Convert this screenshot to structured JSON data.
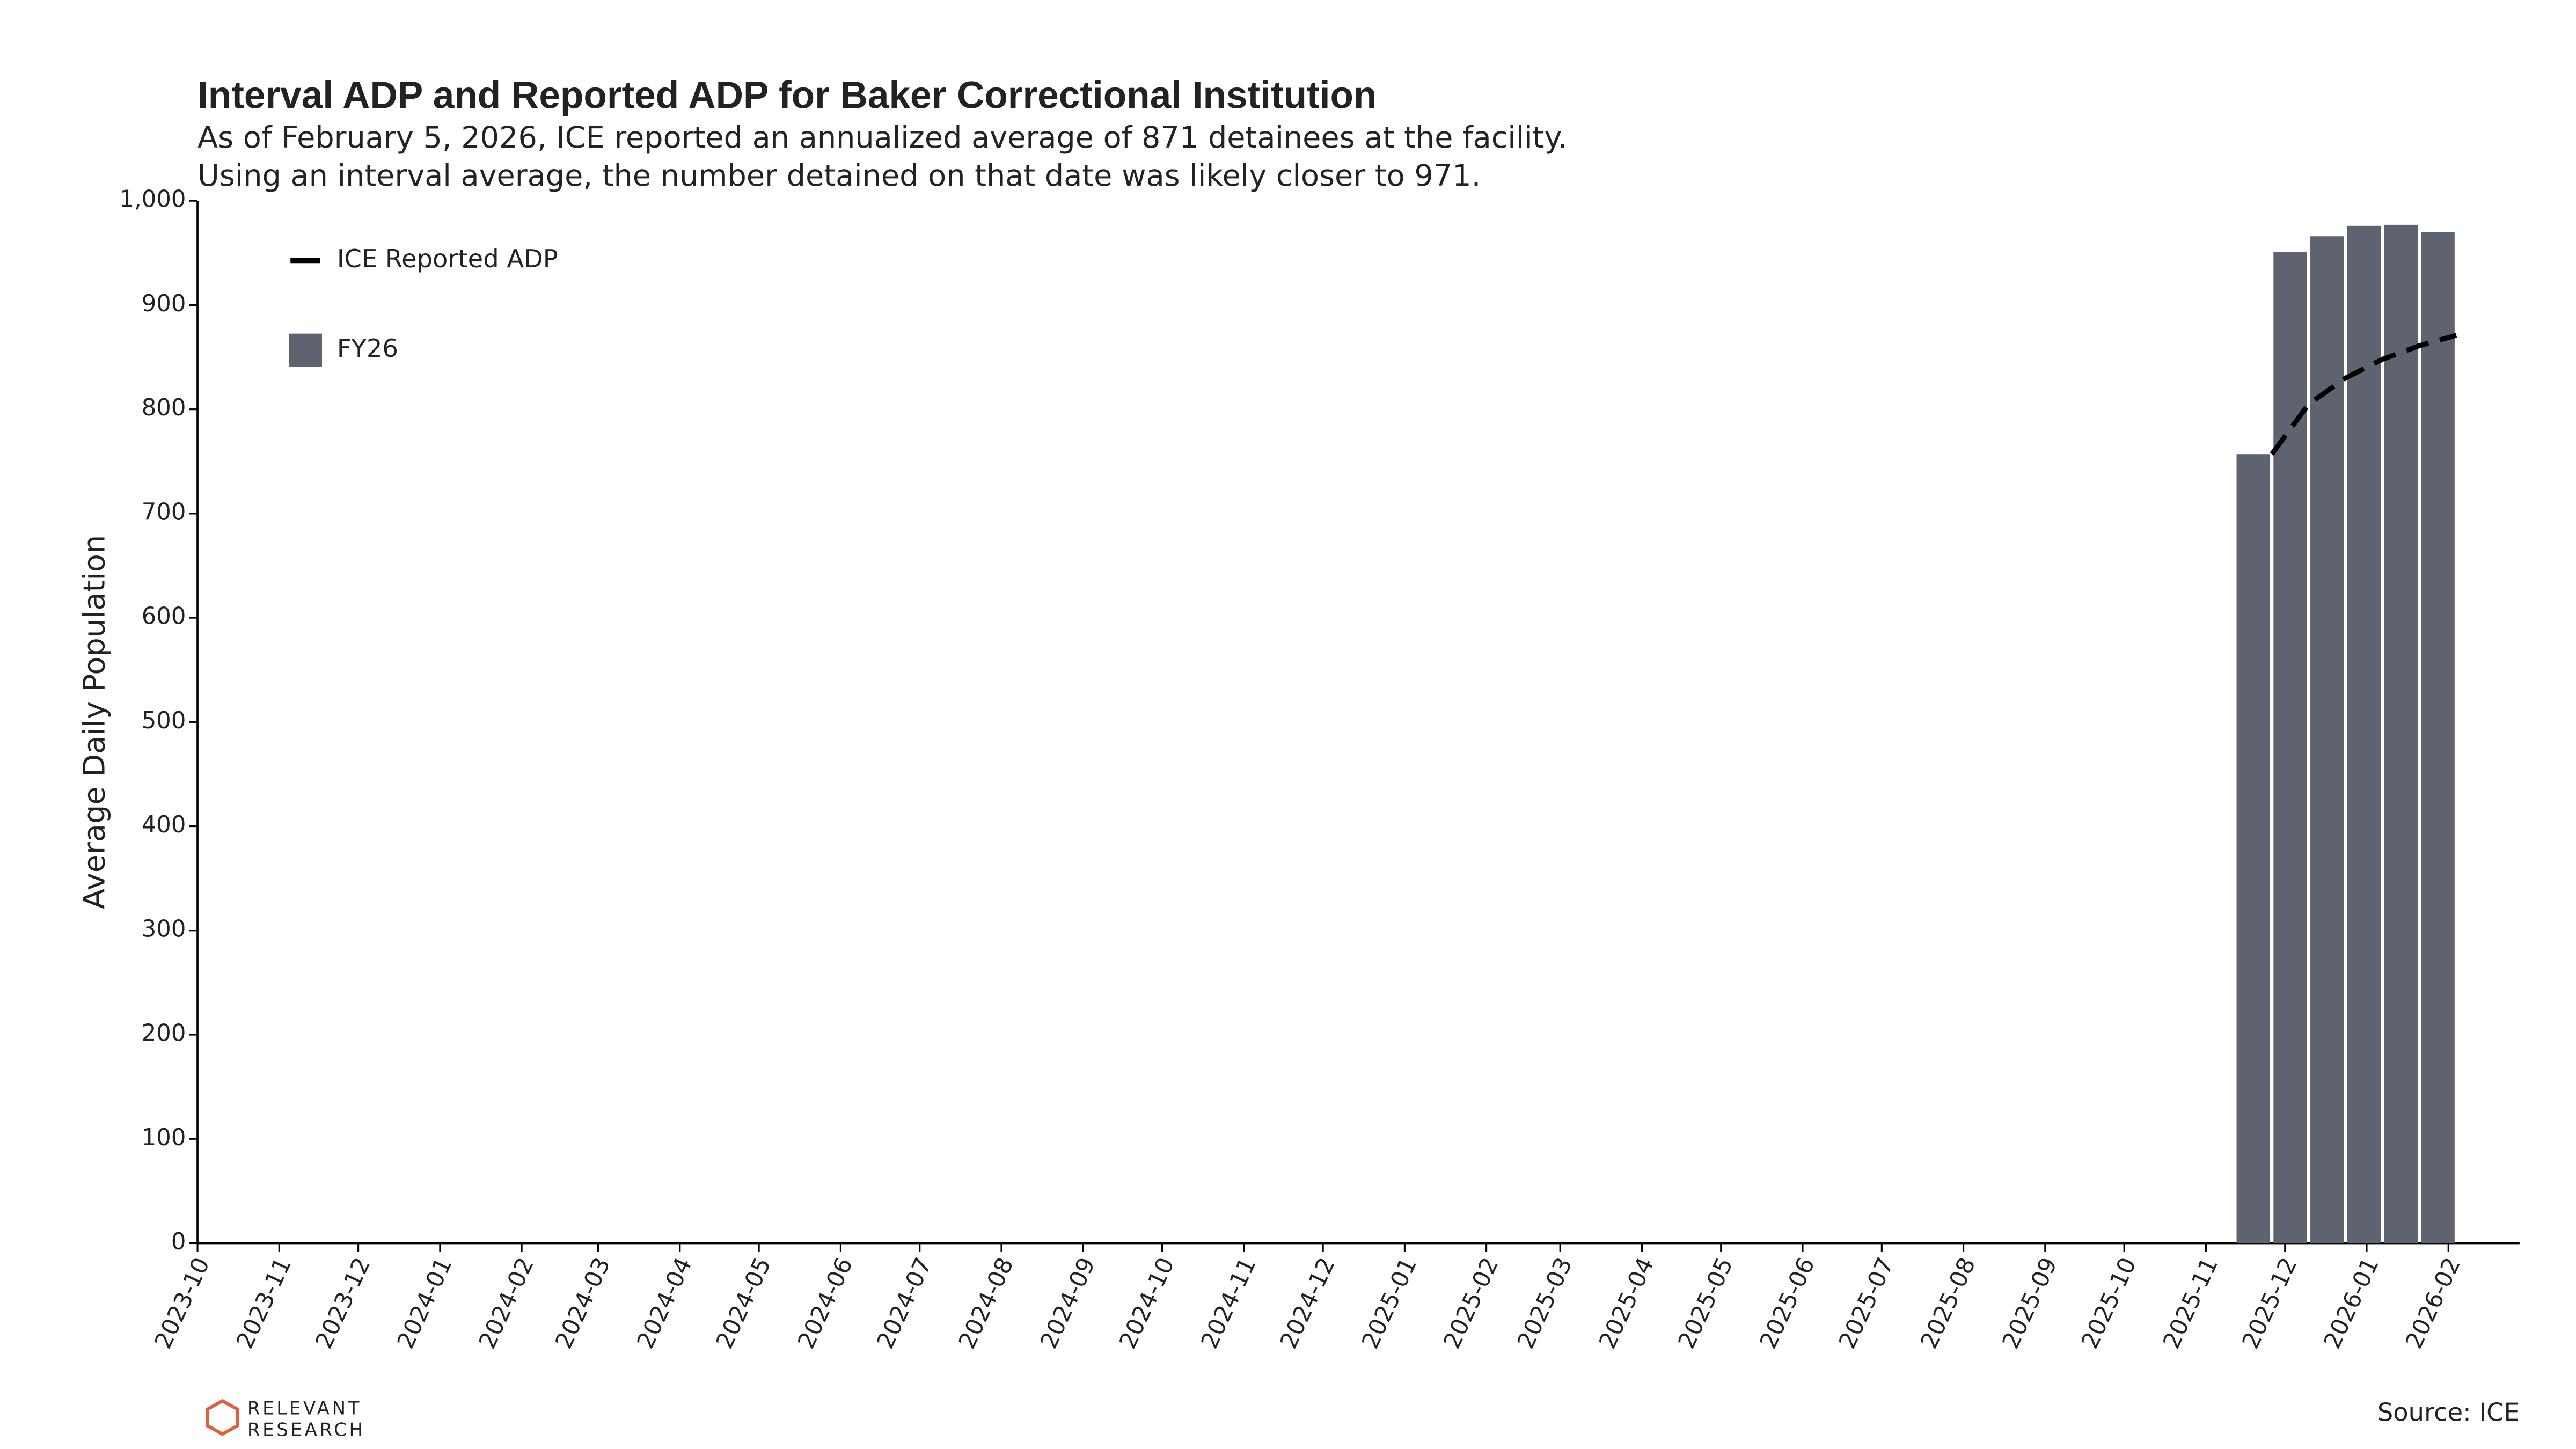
{
  "chart_data": {
    "type": "histogram",
    "title": "Interval ADP and Reported ADP for Baker Correctional Institution",
    "subtitle": [
      "As of February 5, 2026, ICE reported an annualized average of 871 detainees at the facility.",
      "Using an interval average, the number detained on that date was likely closer to 971."
    ],
    "y_label": "Average Daily Population",
    "source": "Source: ICE",
    "logo": [
      "RELEVANT",
      "RESEARCH"
    ],
    "bins": [
      "2025-11-12",
      "2025-11-26",
      "2025-12-10",
      "2025-12-24",
      "2026-01-07",
      "2026-01-21",
      "2026-02-04"
    ],
    "series": [
      {
        "name": "FY26",
        "color": "#5f6370",
        "values": [
          757,
          951,
          966,
          976,
          977,
          970
        ]
      },
      {
        "name": "ICE Reported ADP",
        "type": "line",
        "color": "#000000",
        "dashed": true,
        "x": [
          "2025-11-26",
          "2025-12-10",
          "2025-12-24",
          "2026-01-07",
          "2026-01-21",
          "2026-02-04"
        ],
        "values": [
          757,
          805,
          830,
          848,
          861,
          871
        ]
      }
    ],
    "xlim": [
      "2023-10-01",
      "2026-02-28"
    ],
    "xticks": [
      "2023-10",
      "2023-11",
      "2023-12",
      "2024-01",
      "2024-02",
      "2024-03",
      "2024-04",
      "2024-05",
      "2024-06",
      "2024-07",
      "2024-08",
      "2024-09",
      "2024-10",
      "2024-11",
      "2024-12",
      "2025-01",
      "2025-02",
      "2025-03",
      "2025-04",
      "2025-05",
      "2025-06",
      "2025-07",
      "2025-08",
      "2025-09",
      "2025-10",
      "2025-11",
      "2025-12",
      "2026-01",
      "2026-02"
    ],
    "ylim": [
      0,
      1000
    ],
    "yticks": [
      0,
      100,
      200,
      300,
      400,
      500,
      600,
      700,
      800,
      900,
      {
        "value": 1000,
        "label": "1,000"
      }
    ],
    "grid": false,
    "legend": "upper left"
  }
}
